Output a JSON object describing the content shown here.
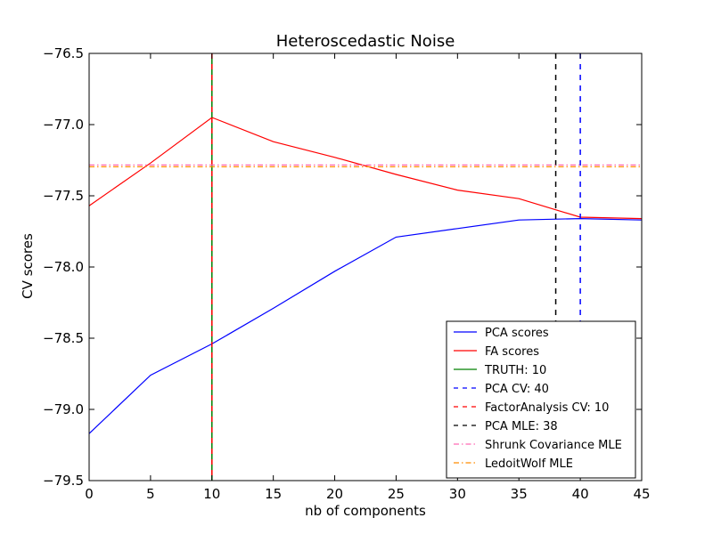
{
  "chart_data": {
    "type": "line",
    "title": "Heteroscedastic Noise",
    "xlabel": "nb of components",
    "ylabel": "CV scores",
    "xlim": [
      0,
      45
    ],
    "ylim": [
      -79.5,
      -76.5
    ],
    "xticks": [
      0,
      5,
      10,
      15,
      20,
      25,
      30,
      35,
      40,
      45
    ],
    "yticks": [
      -79.5,
      -79.0,
      -78.5,
      -78.0,
      -77.5,
      -77.0,
      -76.5
    ],
    "xtick_labels": [
      "0",
      "5",
      "10",
      "15",
      "20",
      "25",
      "30",
      "35",
      "40",
      "45"
    ],
    "ytick_labels": [
      "−79.5",
      "−79.0",
      "−78.5",
      "−78.0",
      "−77.5",
      "−77.0",
      "−76.5"
    ],
    "grid": false,
    "legend_position": "lower-right",
    "series": [
      {
        "name": "PCA scores",
        "color": "#0000ff",
        "style": "solid",
        "x": [
          0,
          5,
          10,
          15,
          20,
          25,
          30,
          35,
          40,
          45
        ],
        "y": [
          -79.17,
          -78.76,
          -78.54,
          -78.29,
          -78.03,
          -77.79,
          -77.73,
          -77.67,
          -77.66,
          -77.67
        ]
      },
      {
        "name": "FA scores",
        "color": "#ff0000",
        "style": "solid",
        "x": [
          0,
          5,
          10,
          15,
          20,
          25,
          30,
          35,
          40,
          45
        ],
        "y": [
          -77.57,
          -77.27,
          -76.95,
          -77.12,
          -77.23,
          -77.35,
          -77.46,
          -77.52,
          -77.65,
          -77.66
        ]
      }
    ],
    "vlines": [
      {
        "name": "TRUTH: 10",
        "x": 10,
        "color": "#008000",
        "style": "solid"
      },
      {
        "name": "PCA CV: 40",
        "x": 40,
        "color": "#0000ff",
        "style": "dashed"
      },
      {
        "name": "FactorAnalysis CV: 10",
        "x": 10,
        "color": "#ff0000",
        "style": "dashed"
      },
      {
        "name": "PCA MLE: 38",
        "x": 38,
        "color": "#000000",
        "style": "dashed"
      }
    ],
    "hlines": [
      {
        "name": "Shrunk Covariance MLE",
        "y": -77.29,
        "color": "#ff69b4",
        "style": "dashdot"
      },
      {
        "name": "LedoitWolf MLE",
        "y": -77.29,
        "color": "#ff8c00",
        "style": "dashdot"
      }
    ],
    "legend": [
      {
        "label": "PCA scores",
        "color": "#0000ff",
        "style": "solid"
      },
      {
        "label": "FA scores",
        "color": "#ff0000",
        "style": "solid"
      },
      {
        "label": "TRUTH: 10",
        "color": "#008000",
        "style": "solid"
      },
      {
        "label": "PCA CV: 40",
        "color": "#0000ff",
        "style": "dashed"
      },
      {
        "label": "FactorAnalysis CV: 10",
        "color": "#ff0000",
        "style": "dashed"
      },
      {
        "label": "PCA MLE: 38",
        "color": "#000000",
        "style": "dashed"
      },
      {
        "label": "Shrunk Covariance MLE",
        "color": "#ff69b4",
        "style": "dashdot"
      },
      {
        "label": "LedoitWolf MLE",
        "color": "#ff8c00",
        "style": "dashdot"
      }
    ]
  }
}
